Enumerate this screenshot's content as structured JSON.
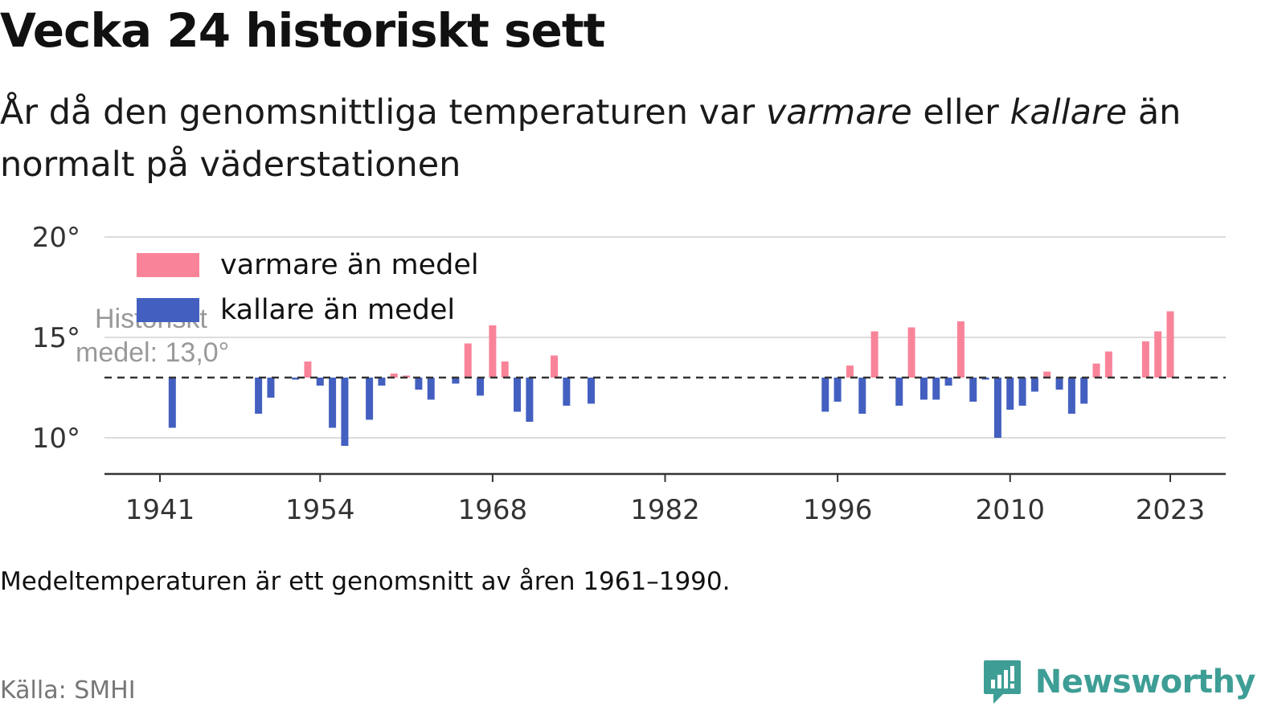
{
  "header": {
    "title": "Vecka 24 historiskt sett",
    "subtitle_1": "År då den genomsnittliga temperaturen var ",
    "subtitle_warm": "varmare",
    "subtitle_2": " eller ",
    "subtitle_cold": "kallare",
    "subtitle_3": " än normalt på väderstationen"
  },
  "footer": {
    "note": "Medeltemperaturen är ett genomsnitt av åren 1961–1990.",
    "source": "Källa: SMHI",
    "brand": "Newsworthy"
  },
  "colors": {
    "warm": "#f98499",
    "cold": "#4360c0",
    "grid": "#dcdcdc",
    "axis": "#333333",
    "brand": "#3e9e95"
  },
  "chart_data": {
    "type": "bar",
    "baseline": 13.0,
    "baseline_label_1": "Historiskt",
    "baseline_label_2": "medel: 13,0°",
    "ylim": [
      8.2,
      20.0
    ],
    "y_ticks": [
      10,
      15,
      20
    ],
    "y_tick_labels": [
      "10°",
      "15°",
      "20°"
    ],
    "x_range": [
      1936.5,
      2027.5
    ],
    "x_ticks": [
      1941,
      1954,
      1968,
      1982,
      1996,
      2010,
      2023
    ],
    "legend": {
      "position": "top-left",
      "warm": "varmare än medel",
      "cold": "kallare än medel"
    },
    "x": [
      1942,
      1949,
      1950,
      1952,
      1953,
      1954,
      1955,
      1956,
      1958,
      1959,
      1960,
      1961,
      1962,
      1963,
      1965,
      1966,
      1967,
      1968,
      1969,
      1970,
      1971,
      1973,
      1974,
      1976,
      1995,
      1996,
      1997,
      1998,
      1999,
      2001,
      2002,
      2003,
      2004,
      2005,
      2006,
      2007,
      2008,
      2009,
      2010,
      2011,
      2012,
      2013,
      2014,
      2015,
      2016,
      2017,
      2018,
      2021,
      2022,
      2023
    ],
    "values": [
      10.5,
      11.2,
      12.0,
      12.9,
      13.8,
      12.6,
      10.5,
      9.6,
      10.9,
      12.6,
      13.2,
      13.1,
      12.4,
      11.9,
      12.7,
      14.7,
      12.1,
      15.6,
      13.8,
      11.3,
      10.8,
      14.1,
      11.6,
      11.7,
      11.3,
      11.8,
      13.6,
      11.2,
      15.3,
      11.6,
      15.5,
      11.9,
      11.9,
      12.6,
      15.8,
      11.8,
      12.9,
      10.0,
      11.4,
      11.6,
      12.3,
      13.3,
      12.4,
      11.2,
      11.7,
      13.7,
      14.3,
      14.8,
      15.3,
      16.3
    ]
  }
}
